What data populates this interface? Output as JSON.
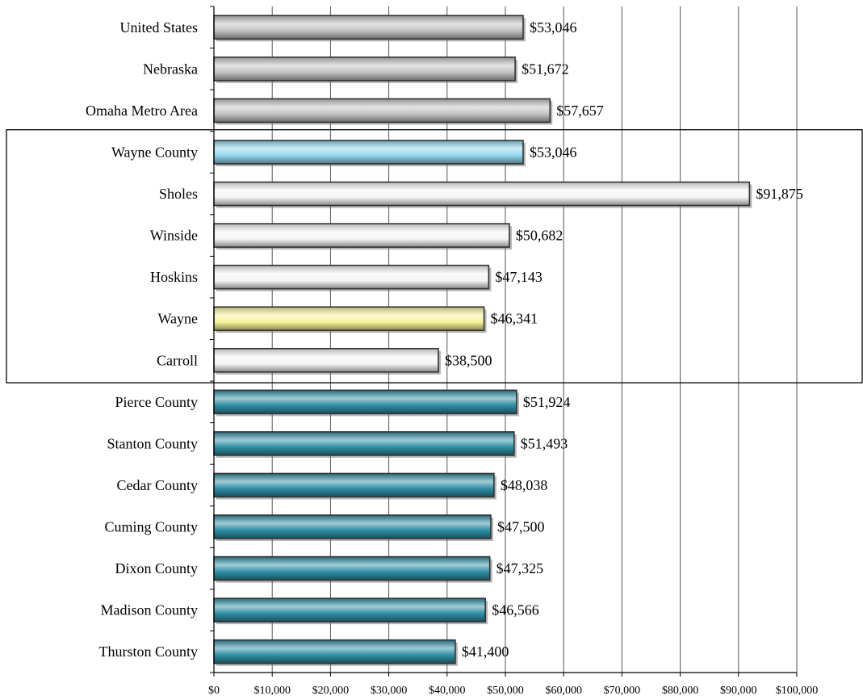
{
  "chart_data": {
    "type": "bar",
    "orientation": "horizontal",
    "title": "",
    "xlabel": "",
    "ylabel": "",
    "xlim": [
      0,
      100000
    ],
    "x_ticks": [
      0,
      10000,
      20000,
      30000,
      40000,
      50000,
      60000,
      70000,
      80000,
      90000,
      100000
    ],
    "x_tick_labels": [
      "$0",
      "$10,000",
      "$20,000",
      "$30,000",
      "$40,000",
      "$50,000",
      "$60,000",
      "$70,000",
      "$80,000",
      "$90,000",
      "$100,000"
    ],
    "grid": "vertical",
    "legend": "none",
    "categories": [
      "United States",
      "Nebraska",
      "Omaha Metro Area",
      "Wayne County",
      "Sholes",
      "Winside",
      "Hoskins",
      "Wayne",
      "Carroll",
      "Pierce County",
      "Stanton County",
      "Cedar County",
      "Cuming County",
      "Dixon County",
      "Madison County",
      "Thurston County"
    ],
    "values": [
      53046,
      51672,
      57657,
      53046,
      91875,
      50682,
      47143,
      46341,
      38500,
      51924,
      51493,
      48038,
      47500,
      47325,
      46566,
      41400
    ],
    "value_labels": [
      "$53,046",
      "$51,672",
      "$57,657",
      "$53,046",
      "$91,875",
      "$50,682",
      "$47,143",
      "$46,341",
      "$38,500",
      "$51,924",
      "$51,493",
      "$48,038",
      "$47,500",
      "$47,325",
      "$46,566",
      "$41,400"
    ],
    "bar_colors": [
      "#c2c2c2",
      "#c2c2c2",
      "#c2c2c2",
      "#8fd6ec",
      "#f5f5f5",
      "#f5f5f5",
      "#f5f5f5",
      "#f6f29a",
      "#f5f5f5",
      "#2f8ea4",
      "#2f8ea4",
      "#2f8ea4",
      "#2f8ea4",
      "#2f8ea4",
      "#2f8ea4",
      "#2f8ea4"
    ],
    "highlight_box": {
      "from_category": "Wayne County",
      "to_category": "Carroll"
    }
  }
}
